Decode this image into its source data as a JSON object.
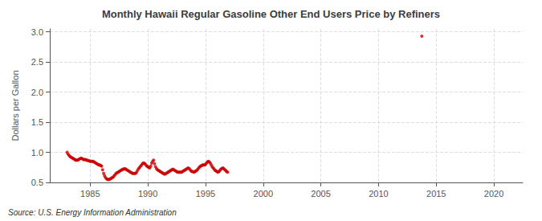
{
  "chart_data": {
    "type": "scatter",
    "title": "Monthly Hawaii Regular Gasoline Other End Users Price by Refiners",
    "ylabel": "Dollars per Gallon",
    "annotation": "Source: U.S. Energy Information Administration",
    "color": "#cc0000",
    "grid": true,
    "xlim": [
      1981.5,
      2022.5
    ],
    "xticks": [
      1985,
      1990,
      1995,
      2000,
      2005,
      2010,
      2015,
      2020
    ],
    "ylim": [
      0.5,
      3.05
    ],
    "yticks": [
      0.5,
      {
        "value": 1.0,
        "label": "1.0"
      },
      1.5,
      {
        "value": 2.0,
        "label": "2.0"
      },
      2.5,
      {
        "value": 3.0,
        "label": "3.0"
      }
    ],
    "x": [
      1983.0,
      1983.08,
      1983.17,
      1983.25,
      1983.33,
      1983.42,
      1983.5,
      1983.58,
      1983.67,
      1983.75,
      1983.83,
      1983.92,
      1984.0,
      1984.08,
      1984.17,
      1984.25,
      1984.33,
      1984.42,
      1984.5,
      1984.58,
      1984.67,
      1984.75,
      1984.83,
      1984.92,
      1985.0,
      1985.08,
      1985.17,
      1985.25,
      1985.33,
      1985.42,
      1985.5,
      1985.58,
      1985.67,
      1985.75,
      1985.83,
      1985.92,
      1986.0,
      1986.08,
      1986.17,
      1986.25,
      1986.33,
      1986.42,
      1986.5,
      1986.58,
      1986.67,
      1986.75,
      1986.83,
      1986.92,
      1987.0,
      1987.08,
      1987.17,
      1987.25,
      1987.33,
      1987.42,
      1987.5,
      1987.58,
      1987.67,
      1987.75,
      1987.83,
      1987.92,
      1988.0,
      1988.08,
      1988.17,
      1988.25,
      1988.33,
      1988.42,
      1988.5,
      1988.58,
      1988.67,
      1988.75,
      1988.83,
      1988.92,
      1989.0,
      1989.08,
      1989.17,
      1989.25,
      1989.33,
      1989.42,
      1989.5,
      1989.58,
      1989.67,
      1989.75,
      1989.83,
      1989.92,
      1990.0,
      1990.08,
      1990.17,
      1990.25,
      1990.33,
      1990.42,
      1990.5,
      1990.58,
      1990.67,
      1990.75,
      1990.83,
      1990.92,
      1991.0,
      1991.08,
      1991.17,
      1991.25,
      1991.33,
      1991.42,
      1991.5,
      1991.58,
      1991.67,
      1991.75,
      1991.83,
      1991.92,
      1992.0,
      1992.08,
      1992.17,
      1992.25,
      1992.33,
      1992.42,
      1992.5,
      1992.58,
      1992.67,
      1992.75,
      1992.83,
      1992.92,
      1993.0,
      1993.08,
      1993.17,
      1993.25,
      1993.33,
      1993.42,
      1993.5,
      1993.58,
      1993.67,
      1993.75,
      1993.83,
      1993.92,
      1994.0,
      1994.08,
      1994.17,
      1994.25,
      1994.33,
      1994.42,
      1994.5,
      1994.58,
      1994.67,
      1994.75,
      1994.83,
      1994.92,
      1995.0,
      1995.08,
      1995.17,
      1995.25,
      1995.33,
      1995.42,
      1995.5,
      1995.58,
      1995.67,
      1995.75,
      1995.83,
      1995.92,
      1996.0,
      1996.08,
      1996.17,
      1996.25,
      1996.33,
      1996.42,
      1996.5,
      1996.58,
      1996.67,
      1996.75,
      1996.83,
      1996.92,
      2013.75
    ],
    "values": [
      1.0,
      0.97,
      0.95,
      0.93,
      0.92,
      0.91,
      0.9,
      0.89,
      0.88,
      0.87,
      0.87,
      0.87,
      0.88,
      0.89,
      0.9,
      0.9,
      0.89,
      0.88,
      0.88,
      0.88,
      0.87,
      0.87,
      0.86,
      0.86,
      0.85,
      0.85,
      0.85,
      0.85,
      0.84,
      0.83,
      0.82,
      0.81,
      0.8,
      0.79,
      0.79,
      0.78,
      0.77,
      0.71,
      0.65,
      0.61,
      0.58,
      0.56,
      0.55,
      0.55,
      0.55,
      0.56,
      0.57,
      0.58,
      0.59,
      0.61,
      0.63,
      0.65,
      0.66,
      0.67,
      0.68,
      0.69,
      0.7,
      0.71,
      0.72,
      0.72,
      0.73,
      0.72,
      0.71,
      0.7,
      0.69,
      0.68,
      0.67,
      0.66,
      0.65,
      0.65,
      0.65,
      0.65,
      0.66,
      0.69,
      0.72,
      0.74,
      0.76,
      0.78,
      0.8,
      0.82,
      0.82,
      0.81,
      0.79,
      0.77,
      0.76,
      0.75,
      0.74,
      0.77,
      0.82,
      0.85,
      0.87,
      0.81,
      0.76,
      0.73,
      0.71,
      0.7,
      0.69,
      0.68,
      0.67,
      0.66,
      0.65,
      0.64,
      0.64,
      0.65,
      0.66,
      0.67,
      0.68,
      0.69,
      0.7,
      0.71,
      0.72,
      0.71,
      0.7,
      0.69,
      0.68,
      0.67,
      0.67,
      0.67,
      0.67,
      0.67,
      0.68,
      0.69,
      0.7,
      0.71,
      0.72,
      0.73,
      0.74,
      0.73,
      0.71,
      0.69,
      0.68,
      0.68,
      0.67,
      0.68,
      0.69,
      0.7,
      0.72,
      0.74,
      0.76,
      0.77,
      0.78,
      0.79,
      0.79,
      0.79,
      0.8,
      0.82,
      0.84,
      0.85,
      0.84,
      0.82,
      0.79,
      0.76,
      0.74,
      0.72,
      0.7,
      0.69,
      0.68,
      0.67,
      0.68,
      0.7,
      0.72,
      0.73,
      0.74,
      0.73,
      0.71,
      0.7,
      0.68,
      0.67,
      2.93
    ]
  }
}
